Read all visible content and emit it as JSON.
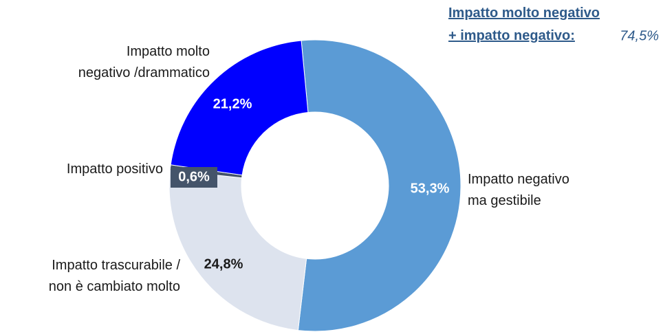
{
  "chart_data": {
    "type": "donut",
    "categories": [
      "Impatto negativo\nma gestibile",
      "Impatto trascurabile /\nnon è cambiato molto",
      "Impatto positivo",
      "Impatto molto\nnegativo /drammatico"
    ],
    "values": [
      53.3,
      24.8,
      0.6,
      21.2
    ],
    "value_labels": [
      "53,3%",
      "24,8%",
      "0,6%",
      "21,2%"
    ],
    "colors": [
      "#5b9bd5",
      "#dde3ee",
      "#44546a",
      "#0000ff"
    ],
    "annotation": {
      "text": "Impatto molto negativo\n+ impatto negativo:",
      "value": 74.5,
      "value_label": "74,5%"
    }
  }
}
